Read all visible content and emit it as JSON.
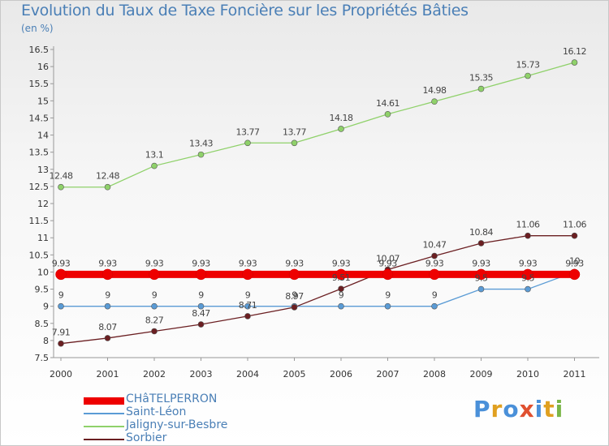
{
  "header": {
    "title": "Evolution du Taux de Taxe Foncière sur les Propriétés Bâties",
    "unit": "(en %)"
  },
  "logo": {
    "text": "Proxiti",
    "colors": [
      "#4a90d9",
      "#e0a020",
      "#4a90d9",
      "#e05030",
      "#4a90d9",
      "#e0a020",
      "#7ab648"
    ]
  },
  "chart_data": {
    "type": "line",
    "title": "Evolution du Taux de Taxe Foncière sur les Propriétés Bâties",
    "ylabel": "(en %)",
    "xlabel": "",
    "x": [
      "2000",
      "2001",
      "2002",
      "2003",
      "2004",
      "2005",
      "2006",
      "2007",
      "2008",
      "2009",
      "2010",
      "2011"
    ],
    "ylim": [
      7.5,
      16.5
    ],
    "yticks": [
      "7.5",
      "8",
      "8.5",
      "9",
      "9.5",
      "10",
      "10.5",
      "11",
      "11.5",
      "12",
      "12.5",
      "13",
      "13.5",
      "14",
      "14.5",
      "15",
      "15.5",
      "16",
      "16.5"
    ],
    "grid": false,
    "legend_position": "bottom-left",
    "series": [
      {
        "name": "CHâTELPERRON",
        "color": "#ee0000",
        "values": [
          9.93,
          9.93,
          9.93,
          9.93,
          9.93,
          9.93,
          9.93,
          9.93,
          9.93,
          9.93,
          9.93,
          9.93
        ],
        "labels": [
          "9.93",
          "9.93",
          "9.93",
          "9.93",
          "9.93",
          "9.93",
          "9.93",
          "9.93",
          "9.93",
          "9.93",
          "9.93",
          "9.93"
        ]
      },
      {
        "name": "Saint-Léon",
        "color": "#5a9bd5",
        "values": [
          9,
          9,
          9,
          9,
          9,
          9,
          9,
          9,
          9,
          9.5,
          9.5,
          10
        ],
        "labels": [
          "9",
          "9",
          "9",
          "9",
          "9",
          "9",
          "9",
          "9",
          "9",
          "9.5",
          "9.5",
          "10"
        ]
      },
      {
        "name": "Jaligny-sur-Besbre",
        "color": "#8fd16a",
        "values": [
          12.48,
          12.48,
          13.1,
          13.43,
          13.77,
          13.77,
          14.18,
          14.61,
          14.98,
          15.35,
          15.73,
          16.12
        ],
        "labels": [
          "12.48",
          "12.48",
          "13.1",
          "13.43",
          "13.77",
          "13.77",
          "14.18",
          "14.61",
          "14.98",
          "15.35",
          "15.73",
          "16.12"
        ]
      },
      {
        "name": "Sorbier",
        "color": "#6b1f22",
        "values": [
          7.91,
          8.07,
          8.27,
          8.47,
          8.71,
          8.97,
          9.51,
          10.07,
          10.47,
          10.84,
          11.06,
          11.06
        ],
        "labels": [
          "7.91",
          "8.07",
          "8.27",
          "8.47",
          "8.71",
          "8.97",
          "9.51",
          "10.07",
          "10.47",
          "10.84",
          "11.06",
          "11.06"
        ]
      }
    ]
  }
}
